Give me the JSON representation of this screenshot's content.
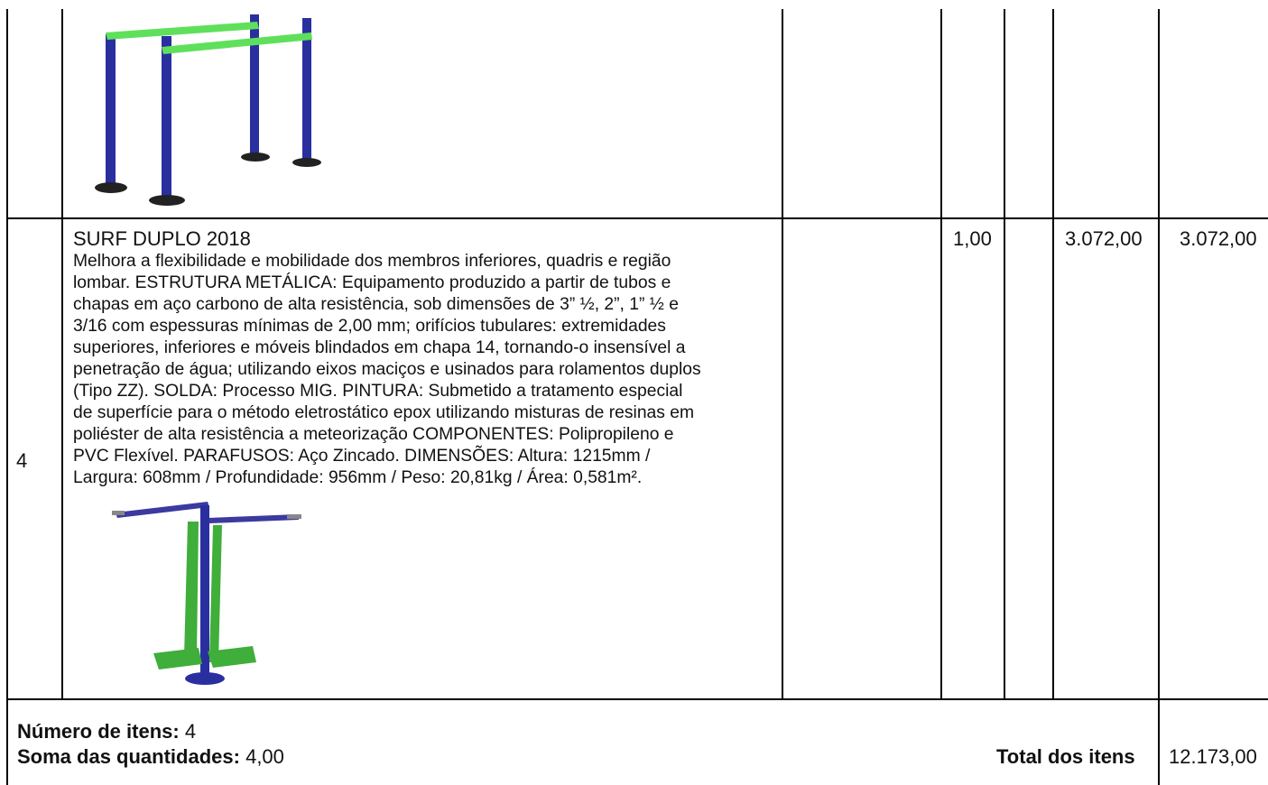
{
  "items": [
    {
      "number": "4",
      "title": "SURF DUPLO 2018",
      "description": "Melhora a flexibilidade e mobilidade dos membros inferiores, quadris e região\nlombar. ESTRUTURA METÁLICA: Equipamento produzido a partir de tubos e\nchapas em aço carbono de alta resistência, sob dimensões de 3” ½, 2”, 1” ½ e\n3/16 com espessuras mínimas de 2,00 mm; orifícios tubulares: extremidades\nsuperiores, inferiores e móveis blindados em chapa 14, tornando-o insensível a\npenetração de água; utilizando eixos maciços e usinados para rolamentos duplos\n(Tipo ZZ). SOLDA: Processo MIG. PINTURA: Submetido a tratamento especial\nde superfície para o método eletrostático epox utilizando misturas de resinas em\npoliéster de alta resistência a meteorização COMPONENTES: Polipropileno e\nPVC Flexível. PARAFUSOS: Aço Zincado. DIMENSÕES: Altura: 1215mm /\nLargura: 608mm / Profundidade: 956mm / Peso: 20,81kg / Área: 0,581m².",
      "quantity": "1,00",
      "unit_price": "3.072,00",
      "total": "3.072,00"
    }
  ],
  "summary": {
    "items_count_label": "Número de itens:",
    "items_count": "4",
    "qty_sum_label": "Soma das quantidades:",
    "qty_sum": "4,00",
    "total_label": "Total dos itens",
    "total_value": "12.173,00"
  },
  "colors": {
    "frame_blue": "#2a2fa0",
    "bar_green": "#5fe05a",
    "seat_green": "#3fae3a",
    "lines": "#000000"
  },
  "icons": [
    "parallel-bars-image",
    "surf-duplo-image"
  ]
}
